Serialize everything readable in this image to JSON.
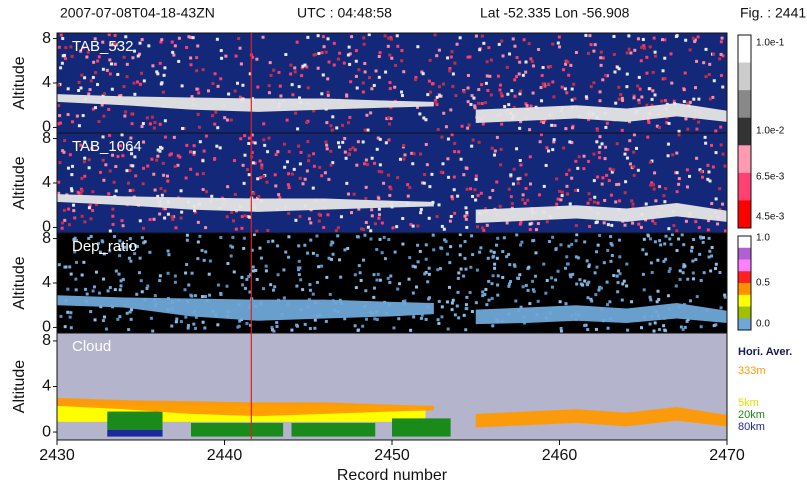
{
  "header": {
    "items": [
      "2007-07-08T04-18-43ZN",
      "UTC : 04:48:58",
      "Lat  -52.335 Lon  -56.908",
      "Fig. : 2441"
    ]
  },
  "cursor": {
    "x": 2441.6,
    "color": "#e02020"
  },
  "chart_data": [
    {
      "type": "area",
      "title": "TAB_532",
      "ylabel": "Altitude",
      "ylim": [
        -0.5,
        8.5
      ],
      "yticks": [
        0,
        4,
        8
      ],
      "xlim": [
        2430,
        2470
      ],
      "background": "#14287a",
      "speckle": [
        "#ff3c6e",
        "#ff8aa8",
        "#e8e8e8",
        "#c0304a"
      ],
      "layer": {
        "color": "#e6e6e6",
        "x": [
          2430,
          2434,
          2438,
          2442,
          2446,
          2450,
          2452.5,
          2453,
          2455,
          2458,
          2461,
          2464,
          2467,
          2470
        ],
        "top": [
          3.0,
          2.8,
          2.7,
          2.6,
          2.6,
          2.4,
          2.3,
          null,
          1.6,
          1.8,
          2.0,
          1.7,
          2.2,
          1.5
        ],
        "base": [
          2.3,
          2.0,
          1.6,
          1.4,
          1.6,
          1.8,
          1.9,
          null,
          0.4,
          0.6,
          0.8,
          0.5,
          1.0,
          0.5
        ]
      }
    },
    {
      "type": "area",
      "title": "TAB_1064",
      "ylabel": "Altitude",
      "ylim": [
        -0.5,
        8.5
      ],
      "yticks": [
        0,
        4,
        8
      ],
      "xlim": [
        2430,
        2470
      ],
      "background": "#14287a",
      "speckle": [
        "#ff3c6e",
        "#ff8aa8",
        "#e8e8e8",
        "#c0304a"
      ],
      "layer": {
        "color": "#e6e6e6",
        "x": [
          2430,
          2434,
          2438,
          2442,
          2446,
          2450,
          2452.5,
          2453,
          2455,
          2458,
          2461,
          2464,
          2467,
          2470
        ],
        "top": [
          3.0,
          2.8,
          2.7,
          2.6,
          2.6,
          2.4,
          2.3,
          null,
          1.6,
          1.8,
          2.0,
          1.7,
          2.2,
          1.5
        ],
        "base": [
          2.3,
          2.0,
          1.6,
          1.4,
          1.6,
          1.8,
          1.9,
          null,
          0.4,
          0.6,
          0.8,
          0.5,
          1.0,
          0.5
        ]
      }
    },
    {
      "type": "area",
      "title": "Dep_ratio",
      "ylabel": "Altitude",
      "ylim": [
        -0.5,
        8.5
      ],
      "yticks": [
        0,
        4,
        8
      ],
      "xlim": [
        2430,
        2470
      ],
      "background": "#000000",
      "speckle": [
        "#6fa8d8",
        "#5a90c0",
        "#8fc0e8",
        "#6fa8d8"
      ],
      "layer": {
        "color": "#6fa8d8",
        "x": [
          2430,
          2434,
          2438,
          2442,
          2446,
          2450,
          2452.5,
          2453,
          2455,
          2458,
          2461,
          2464,
          2467,
          2470
        ],
        "top": [
          2.9,
          2.7,
          2.6,
          2.5,
          2.5,
          2.3,
          2.2,
          null,
          1.6,
          1.8,
          2.0,
          1.7,
          2.2,
          1.5
        ],
        "base": [
          2.0,
          1.8,
          1.0,
          0.6,
          0.8,
          1.0,
          1.2,
          null,
          0.3,
          0.4,
          0.6,
          0.4,
          0.8,
          0.4
        ]
      }
    },
    {
      "type": "area",
      "title": "Cloud",
      "ylabel": "Altitude",
      "ylim": [
        -0.7,
        8.7
      ],
      "yticks": [
        0,
        4,
        8
      ],
      "xlim": [
        2430,
        2470
      ],
      "xticks": [
        2430,
        2440,
        2450,
        2460,
        2470
      ],
      "xlabel": "Record number",
      "background": "#b4b4cc",
      "speckle": [],
      "layer": {
        "color": "#ff9a00",
        "x": [
          2430,
          2434,
          2438,
          2442,
          2446,
          2450,
          2452.5,
          2453,
          2455,
          2458,
          2461,
          2464,
          2467,
          2470
        ],
        "top": [
          3.0,
          2.8,
          2.7,
          2.6,
          2.6,
          2.4,
          2.3,
          null,
          1.6,
          1.8,
          2.0,
          1.7,
          2.2,
          1.5
        ],
        "base": [
          2.3,
          2.0,
          1.6,
          1.4,
          1.6,
          1.8,
          1.9,
          null,
          0.4,
          0.6,
          0.8,
          0.5,
          1.0,
          0.5
        ]
      },
      "blocks": [
        {
          "color": "#ffff00",
          "x": [
            2430,
            2452
          ],
          "y": [
            0.9,
            2.3
          ]
        },
        {
          "color": "#1a8a1a",
          "x": [
            2433,
            2436.3
          ],
          "y": [
            0.2,
            1.8
          ]
        },
        {
          "color": "#1a2a9a",
          "x": [
            2433,
            2436.3
          ],
          "y": [
            -0.4,
            0.2
          ]
        },
        {
          "color": "#1a8a1a",
          "x": [
            2438,
            2443.5
          ],
          "y": [
            -0.4,
            0.8
          ]
        },
        {
          "color": "#1a8a1a",
          "x": [
            2444,
            2449
          ],
          "y": [
            -0.4,
            0.8
          ]
        },
        {
          "color": "#1a8a1a",
          "x": [
            2450,
            2453.5
          ],
          "y": [
            -0.4,
            1.2
          ]
        }
      ]
    }
  ],
  "colorbars": [
    {
      "colors": [
        "#ffffff",
        "#cccccc",
        "#888888",
        "#333333",
        "#ff9ab0",
        "#ff4070",
        "#ff0000"
      ],
      "labels": [
        "1.0e-1",
        "1.0e-2",
        "6.5e-3",
        "4.5e-3"
      ]
    },
    {
      "colors": [
        "#ffffff",
        "#b060d0",
        "#ff80ff",
        "#ff2020",
        "#ff9000",
        "#ffff00",
        "#a0c000",
        "#6fa8d8"
      ],
      "labels": [
        "1.0",
        "0.5",
        "0.0"
      ]
    }
  ],
  "legend": {
    "entries": [
      {
        "label": "Hori. Aver.",
        "color": "#1a1a50"
      },
      {
        "label": "333m",
        "color": "#ff9a00"
      },
      {
        "label": "5km",
        "color": "#e0e000"
      },
      {
        "label": "20km",
        "color": "#1a8a1a"
      },
      {
        "label": "80km",
        "color": "#1a2a9a"
      }
    ]
  }
}
